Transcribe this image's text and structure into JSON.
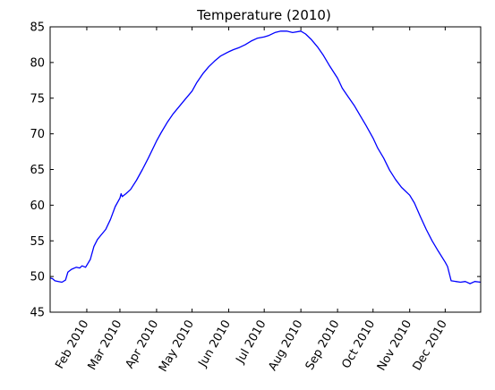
{
  "chart_data": {
    "type": "line",
    "title": "Temperature (2010)",
    "xlabel": "",
    "ylabel": "",
    "x_axis_type": "date",
    "xlim": [
      "2010-01-01",
      "2010-12-31"
    ],
    "ylim": [
      45,
      85
    ],
    "y_ticks": [
      45,
      50,
      55,
      60,
      65,
      70,
      75,
      80,
      85
    ],
    "x_ticks": [
      {
        "date": "2010-02-01",
        "label": "Feb 2010"
      },
      {
        "date": "2010-03-01",
        "label": "Mar 2010"
      },
      {
        "date": "2010-04-01",
        "label": "Apr 2010"
      },
      {
        "date": "2010-05-01",
        "label": "May 2010"
      },
      {
        "date": "2010-06-01",
        "label": "Jun 2010"
      },
      {
        "date": "2010-07-01",
        "label": "Jul 2010"
      },
      {
        "date": "2010-08-01",
        "label": "Aug 2010"
      },
      {
        "date": "2010-09-01",
        "label": "Sep 2010"
      },
      {
        "date": "2010-10-01",
        "label": "Oct 2010"
      },
      {
        "date": "2010-11-01",
        "label": "Nov 2010"
      },
      {
        "date": "2010-12-01",
        "label": "Dec 2010"
      }
    ],
    "grid": false,
    "legend": "none",
    "series": [
      {
        "color": "#0000ff",
        "points": [
          [
            "2010-01-01",
            49.8
          ],
          [
            "2010-01-03",
            49.7
          ],
          [
            "2010-01-05",
            49.4
          ],
          [
            "2010-01-08",
            49.3
          ],
          [
            "2010-01-11",
            49.2
          ],
          [
            "2010-01-14",
            49.5
          ],
          [
            "2010-01-16",
            50.6
          ],
          [
            "2010-01-19",
            51.0
          ],
          [
            "2010-01-23",
            51.3
          ],
          [
            "2010-01-26",
            51.2
          ],
          [
            "2010-01-28",
            51.5
          ],
          [
            "2010-01-31",
            51.3
          ],
          [
            "2010-02-04",
            52.4
          ],
          [
            "2010-02-07",
            54.2
          ],
          [
            "2010-02-10",
            55.2
          ],
          [
            "2010-02-13",
            55.8
          ],
          [
            "2010-02-17",
            56.6
          ],
          [
            "2010-02-21",
            58.0
          ],
          [
            "2010-02-25",
            59.8
          ],
          [
            "2010-03-01",
            61.0
          ],
          [
            "2010-03-02",
            61.6
          ],
          [
            "2010-03-03",
            61.2
          ],
          [
            "2010-03-06",
            61.6
          ],
          [
            "2010-03-10",
            62.2
          ],
          [
            "2010-03-15",
            63.5
          ],
          [
            "2010-03-20",
            65.0
          ],
          [
            "2010-03-25",
            66.6
          ],
          [
            "2010-04-01",
            69.0
          ],
          [
            "2010-04-05",
            70.2
          ],
          [
            "2010-04-10",
            71.6
          ],
          [
            "2010-04-15",
            72.8
          ],
          [
            "2010-04-20",
            73.8
          ],
          [
            "2010-04-25",
            74.8
          ],
          [
            "2010-05-01",
            76.0
          ],
          [
            "2010-05-05",
            77.2
          ],
          [
            "2010-05-10",
            78.4
          ],
          [
            "2010-05-15",
            79.4
          ],
          [
            "2010-05-20",
            80.2
          ],
          [
            "2010-05-25",
            80.9
          ],
          [
            "2010-06-01",
            81.5
          ],
          [
            "2010-06-05",
            81.8
          ],
          [
            "2010-06-10",
            82.1
          ],
          [
            "2010-06-15",
            82.5
          ],
          [
            "2010-06-20",
            83.0
          ],
          [
            "2010-06-25",
            83.4
          ],
          [
            "2010-07-01",
            83.6
          ],
          [
            "2010-07-05",
            83.8
          ],
          [
            "2010-07-10",
            84.2
          ],
          [
            "2010-07-15",
            84.4
          ],
          [
            "2010-07-20",
            84.4
          ],
          [
            "2010-07-25",
            84.2
          ],
          [
            "2010-08-01",
            84.4
          ],
          [
            "2010-08-05",
            84.0
          ],
          [
            "2010-08-10",
            83.2
          ],
          [
            "2010-08-15",
            82.2
          ],
          [
            "2010-08-20",
            81.0
          ],
          [
            "2010-08-25",
            79.6
          ],
          [
            "2010-09-01",
            77.8
          ],
          [
            "2010-09-05",
            76.4
          ],
          [
            "2010-09-10",
            75.2
          ],
          [
            "2010-09-15",
            74.0
          ],
          [
            "2010-09-20",
            72.6
          ],
          [
            "2010-09-25",
            71.2
          ],
          [
            "2010-10-01",
            69.4
          ],
          [
            "2010-10-05",
            68.0
          ],
          [
            "2010-10-10",
            66.6
          ],
          [
            "2010-10-15",
            64.9
          ],
          [
            "2010-10-20",
            63.6
          ],
          [
            "2010-10-25",
            62.5
          ],
          [
            "2010-11-01",
            61.4
          ],
          [
            "2010-11-05",
            60.3
          ],
          [
            "2010-11-10",
            58.4
          ],
          [
            "2010-11-15",
            56.6
          ],
          [
            "2010-11-20",
            55.0
          ],
          [
            "2010-11-25",
            53.6
          ],
          [
            "2010-12-01",
            52.0
          ],
          [
            "2010-12-03",
            51.4
          ],
          [
            "2010-12-06",
            49.4
          ],
          [
            "2010-12-10",
            49.3
          ],
          [
            "2010-12-14",
            49.2
          ],
          [
            "2010-12-18",
            49.3
          ],
          [
            "2010-12-22",
            49.0
          ],
          [
            "2010-12-26",
            49.3
          ],
          [
            "2010-12-31",
            49.2
          ]
        ]
      }
    ]
  }
}
